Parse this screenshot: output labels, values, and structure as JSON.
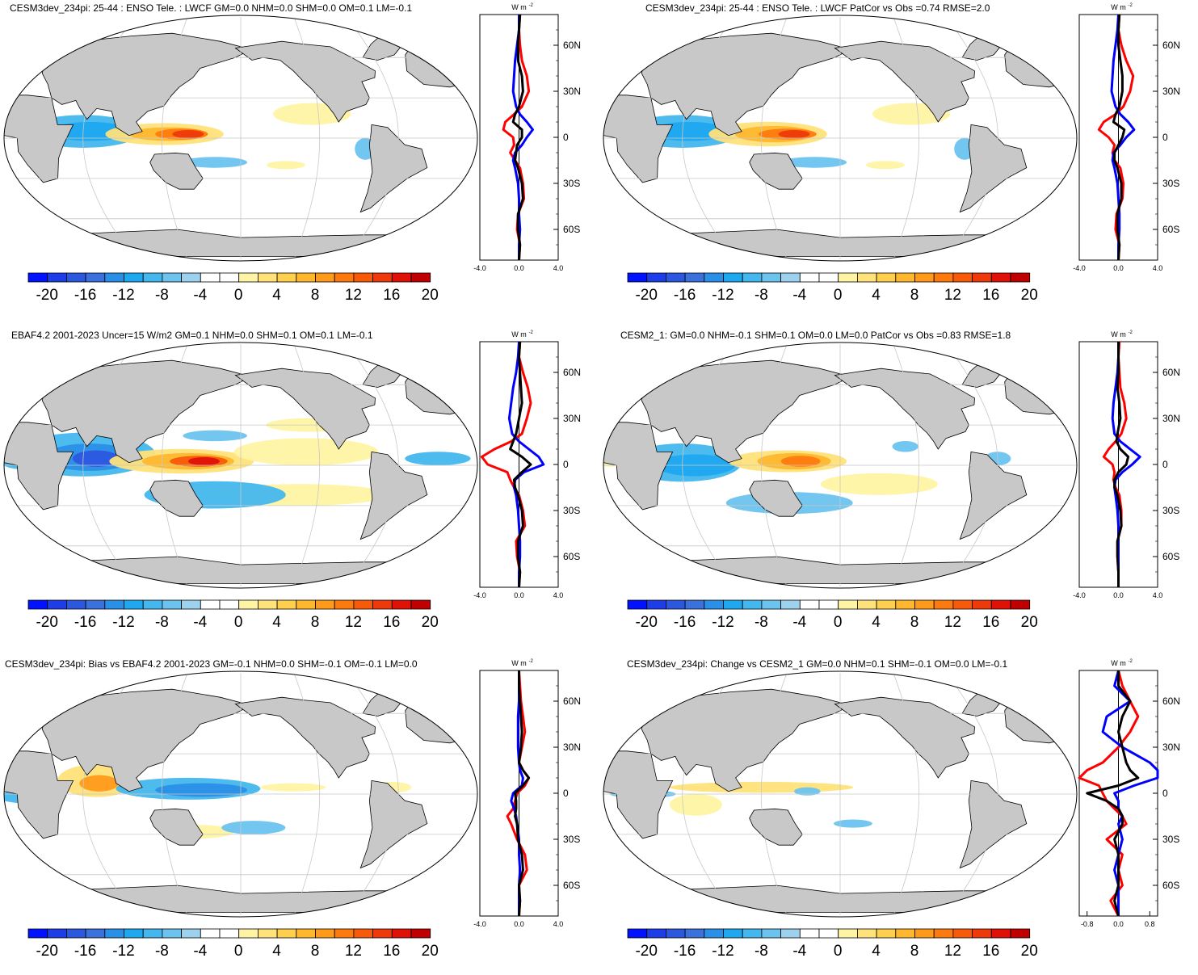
{
  "colors": {
    "land": "#c8c8c8",
    "ocean": "#ffffff",
    "grid": "#c8c8c8",
    "zonal_series": {
      "model": "#ff0000",
      "obs_or_ref": "#0000ff",
      "difference": "#000000"
    },
    "colorbar": [
      "#0012ff",
      "#1d3de8",
      "#2c58e0",
      "#3a71dc",
      "#2a8fe6",
      "#1ea8ef",
      "#44b7ee",
      "#6cc3ee",
      "#9dd2ef",
      "#ffffff",
      "#ffffff",
      "#fff4a3",
      "#ffe27a",
      "#ffcf4e",
      "#ffb72e",
      "#ff9a1a",
      "#ff7a0e",
      "#f85a0a",
      "#ee3a0a",
      "#e01208",
      "#c00000"
    ]
  },
  "charts": [
    {
      "title": "CESM3dev_234pi: 25-44 : ENSO Tele. : LWCF GM=0.0 NHM=0.0 SHM=0.0 OM=0.1 LM=-0.1",
      "unit": "W m-2",
      "zonal_xticks": [
        "-4.0",
        "0.0",
        "4.0"
      ],
      "zonal_xlim": [
        -4,
        4
      ],
      "colorbar_labels": [
        "-20",
        "-16",
        "-12",
        "-8",
        "-4",
        "0",
        "4",
        "8",
        "12",
        "16",
        "20"
      ]
    },
    {
      "title": "CESM3dev_234pi: 25-44 : ENSO Tele. : LWCF PatCor vs Obs =0.74 RMSE=2.0",
      "unit": "W m-2",
      "zonal_xticks": [
        "-4.0",
        "0.0",
        "4.0"
      ],
      "zonal_xlim": [
        -4,
        4
      ],
      "colorbar_labels": [
        "-20",
        "-16",
        "-12",
        "-8",
        "-4",
        "0",
        "4",
        "8",
        "12",
        "16",
        "20"
      ]
    },
    {
      "title": "EBAF4.2 2001-2023 Uncer=15 W/m2 GM=0.1 NHM=0.0 SHM=0.1 OM=0.1 LM=-0.1",
      "unit": "W m-2",
      "zonal_xticks": [
        "-4.0",
        "0.0",
        "4.0"
      ],
      "zonal_xlim": [
        -4,
        4
      ],
      "colorbar_labels": [
        "-20",
        "-16",
        "-12",
        "-8",
        "-4",
        "0",
        "4",
        "8",
        "12",
        "16",
        "20"
      ]
    },
    {
      "title": "CESM2_1: GM=0.0 NHM=-0.1 SHM=0.1 OM=0.0 LM=0.0 PatCor vs Obs =0.83 RMSE=1.8",
      "unit": "W m-2",
      "zonal_xticks": [
        "-4.0",
        "0.0",
        "4.0"
      ],
      "zonal_xlim": [
        -4,
        4
      ],
      "colorbar_labels": [
        "-20",
        "-16",
        "-12",
        "-8",
        "-4",
        "0",
        "4",
        "8",
        "12",
        "16",
        "20"
      ]
    },
    {
      "title": "CESM3dev_234pi: Bias vs EBAF4.2 2001-2023 GM=-0.1 NHM=0.0 SHM=-0.1 OM=-0.1 LM=0.0",
      "unit": "W m-2",
      "zonal_xticks": [
        "-4.0",
        "0.0",
        "4.0"
      ],
      "zonal_xlim": [
        -4,
        4
      ],
      "colorbar_labels": [
        "-20",
        "-16",
        "-12",
        "-8",
        "-4",
        "0",
        "4",
        "8",
        "12",
        "16",
        "20"
      ]
    },
    {
      "title": "CESM3dev_234pi: Change vs CESM2_1 GM=0.0 NHM=0.1 SHM=-0.1 OM=0.0 LM=-0.1",
      "unit": "W m-2",
      "zonal_xticks": [
        "-0.8",
        "0.0",
        "0.8"
      ],
      "zonal_xlim": [
        -1,
        1
      ],
      "colorbar_labels": [
        "-20",
        "-16",
        "-12",
        "-8",
        "-4",
        "0",
        "4",
        "8",
        "12",
        "16",
        "20"
      ]
    }
  ],
  "chart_data": [
    {
      "type": "heatmap",
      "title": "CESM3dev_234pi: 25-44 : ENSO Tele. : LWCF GM=0.0 NHM=0.0 SHM=0.0 OM=0.1 LM=-0.1",
      "colorbar_range": [
        -22,
        22
      ],
      "colorbar_interval": 2,
      "zonal_mean": {
        "ylim": [
          -80,
          80
        ],
        "yticks": [
          "60N",
          "30N",
          "0",
          "30S",
          "60S"
        ],
        "xlim": [
          -4,
          4
        ],
        "lat": [
          80,
          70,
          60,
          50,
          40,
          30,
          20,
          15,
          10,
          5,
          0,
          -5,
          -10,
          -15,
          -20,
          -30,
          -40,
          -50,
          -60,
          -70,
          -80
        ],
        "series": [
          {
            "color": "red",
            "values": [
              0.1,
              0.0,
              0.1,
              0.3,
              0.8,
              1.0,
              0.3,
              -0.5,
              -1.4,
              -1.6,
              -0.6,
              -0.5,
              -0.9,
              -0.4,
              0.1,
              0.4,
              0.5,
              -0.1,
              -0.2,
              0.1,
              0.0
            ]
          },
          {
            "color": "blue",
            "values": [
              0.0,
              0.0,
              -0.2,
              -0.4,
              -0.5,
              -0.6,
              -0.3,
              0.1,
              0.8,
              1.4,
              0.8,
              0.3,
              -0.4,
              -0.6,
              -0.4,
              -0.1,
              0.0,
              0.0,
              0.1,
              0.0,
              0.0
            ]
          },
          {
            "color": "black",
            "values": [
              0.1,
              0.0,
              -0.1,
              -0.1,
              0.3,
              0.4,
              0.0,
              -0.4,
              -0.6,
              0.3,
              0.3,
              -0.2,
              -0.3,
              -0.4,
              -0.1,
              0.3,
              0.4,
              -0.1,
              -0.1,
              0.1,
              0.0
            ]
          }
        ]
      }
    },
    {
      "type": "heatmap",
      "title": "CESM3dev_234pi: 25-44 : ENSO Tele. : LWCF PatCor vs Obs =0.74 RMSE=2.0",
      "colorbar_range": [
        -22,
        22
      ],
      "colorbar_interval": 2,
      "zonal_mean": {
        "ylim": [
          -80,
          80
        ],
        "yticks": [
          "60N",
          "30N",
          "0",
          "30S",
          "60S"
        ],
        "xlim": [
          -4,
          4
        ],
        "lat": [
          80,
          70,
          60,
          50,
          40,
          30,
          20,
          15,
          10,
          5,
          0,
          -5,
          -10,
          -15,
          -20,
          -30,
          -40,
          -50,
          -60,
          -70,
          -80
        ],
        "series": [
          {
            "color": "red",
            "values": [
              0.1,
              0.0,
              0.3,
              0.8,
              1.5,
              1.2,
              0.5,
              -0.3,
              -1.5,
              -2.0,
              -1.0,
              -0.4,
              -0.6,
              -0.4,
              0.2,
              0.5,
              0.4,
              -0.2,
              -0.3,
              0.1,
              0.0
            ]
          },
          {
            "color": "blue",
            "values": [
              0.0,
              -0.1,
              -0.3,
              -0.5,
              -0.6,
              -0.7,
              -0.3,
              0.2,
              1.0,
              1.6,
              0.8,
              0.2,
              -0.5,
              -0.6,
              -0.4,
              -0.1,
              0.0,
              0.1,
              0.1,
              0.0,
              0.0
            ]
          },
          {
            "color": "black",
            "values": [
              0.1,
              0.0,
              0.0,
              0.2,
              0.4,
              0.4,
              0.1,
              -0.3,
              -0.5,
              0.6,
              0.4,
              0.0,
              -0.4,
              -0.4,
              -0.1,
              0.3,
              0.3,
              -0.1,
              -0.1,
              0.1,
              0.0
            ]
          }
        ]
      }
    },
    {
      "type": "heatmap",
      "title": "EBAF4.2 2001-2023 Uncer=15 W/m2 GM=0.1 NHM=0.0 SHM=0.1 OM=0.1 LM=-0.1",
      "colorbar_range": [
        -22,
        22
      ],
      "colorbar_interval": 2,
      "zonal_mean": {
        "ylim": [
          -80,
          80
        ],
        "yticks": [
          "60N",
          "30N",
          "0",
          "30S",
          "60S"
        ],
        "xlim": [
          -4,
          4
        ],
        "lat": [
          80,
          70,
          60,
          50,
          40,
          30,
          20,
          15,
          10,
          5,
          0,
          -5,
          -10,
          -15,
          -20,
          -30,
          -40,
          -50,
          -60,
          -70,
          -80
        ],
        "series": [
          {
            "color": "red",
            "values": [
              0.1,
              0.0,
              0.4,
              0.9,
              1.2,
              0.8,
              0.3,
              -0.8,
              -2.5,
              -3.8,
              -3.2,
              -1.2,
              -0.9,
              -0.5,
              0.0,
              0.4,
              0.6,
              -0.3,
              -0.2,
              0.1,
              0.0
            ]
          },
          {
            "color": "blue",
            "values": [
              0.0,
              -0.1,
              -0.3,
              -0.6,
              -0.8,
              -1.0,
              -0.7,
              0.0,
              1.0,
              2.0,
              2.5,
              0.5,
              -0.4,
              -0.5,
              -0.3,
              -0.1,
              0.0,
              0.1,
              0.1,
              0.0,
              0.0
            ]
          },
          {
            "color": "black",
            "values": [
              0.1,
              0.0,
              0.1,
              0.2,
              0.3,
              0.0,
              -0.3,
              -0.6,
              -0.9,
              0.3,
              1.2,
              0.3,
              -0.5,
              -0.4,
              -0.1,
              0.3,
              0.4,
              -0.1,
              -0.1,
              0.1,
              0.0
            ]
          }
        ]
      }
    },
    {
      "type": "heatmap",
      "title": "CESM2_1: GM=0.0 NHM=-0.1 SHM=0.1 OM=0.0 LM=0.0 PatCor vs Obs =0.83 RMSE=1.8",
      "colorbar_range": [
        -22,
        22
      ],
      "colorbar_interval": 2,
      "zonal_mean": {
        "ylim": [
          -80,
          80
        ],
        "yticks": [
          "60N",
          "30N",
          "0",
          "30S",
          "60S"
        ],
        "xlim": [
          -4,
          4
        ],
        "lat": [
          80,
          70,
          60,
          50,
          40,
          30,
          20,
          15,
          10,
          5,
          0,
          -5,
          -10,
          -15,
          -20,
          -30,
          -40,
          -50,
          -60,
          -70,
          -80
        ],
        "series": [
          {
            "color": "red",
            "values": [
              0.1,
              0.0,
              0.1,
              0.2,
              0.6,
              0.8,
              0.3,
              -0.3,
              -1.0,
              -1.5,
              -0.6,
              -0.4,
              -0.5,
              -0.3,
              0.1,
              0.3,
              0.3,
              -0.1,
              -0.1,
              0.0,
              0.0
            ]
          },
          {
            "color": "blue",
            "values": [
              0.0,
              0.0,
              -0.1,
              -0.3,
              -0.5,
              -0.6,
              -0.4,
              0.2,
              1.2,
              2.2,
              1.4,
              0.4,
              -0.3,
              -0.4,
              -0.3,
              -0.1,
              0.0,
              0.0,
              0.0,
              0.0,
              0.0
            ]
          },
          {
            "color": "black",
            "values": [
              0.0,
              0.0,
              0.0,
              -0.1,
              0.1,
              0.2,
              -0.1,
              -0.2,
              0.2,
              1.0,
              0.8,
              0.0,
              -0.4,
              -0.4,
              -0.1,
              0.2,
              0.3,
              -0.1,
              -0.1,
              0.0,
              0.0
            ]
          }
        ]
      }
    },
    {
      "type": "heatmap",
      "title": "CESM3dev_234pi: Bias vs EBAF4.2 2001-2023 GM=-0.1 NHM=0.0 SHM=-0.1 OM=-0.1 LM=0.0",
      "colorbar_range": [
        -22,
        22
      ],
      "colorbar_interval": 2,
      "zonal_mean": {
        "ylim": [
          -80,
          80
        ],
        "yticks": [
          "60N",
          "30N",
          "0",
          "30S",
          "60S"
        ],
        "xlim": [
          -4,
          4
        ],
        "lat": [
          80,
          70,
          60,
          50,
          40,
          30,
          20,
          15,
          10,
          5,
          0,
          -5,
          -10,
          -15,
          -20,
          -30,
          -40,
          -50,
          -60,
          -70,
          -80
        ],
        "series": [
          {
            "color": "red",
            "values": [
              0.0,
              0.1,
              0.2,
              0.4,
              0.6,
              0.3,
              0.0,
              0.4,
              1.0,
              0.6,
              -0.2,
              -0.4,
              -0.6,
              -1.2,
              -0.8,
              -0.2,
              0.6,
              0.8,
              0.0,
              0.1,
              0.0
            ]
          },
          {
            "color": "blue",
            "values": [
              0.0,
              0.0,
              0.0,
              -0.1,
              -0.1,
              -0.1,
              0.0,
              0.1,
              0.4,
              0.3,
              -0.6,
              -0.8,
              -0.5,
              -0.3,
              -0.2,
              0.0,
              0.0,
              0.1,
              0.0,
              0.0,
              0.0
            ]
          },
          {
            "color": "black",
            "values": [
              0.0,
              0.0,
              0.1,
              0.2,
              0.3,
              0.2,
              0.0,
              0.4,
              1.0,
              0.4,
              -0.4,
              -0.3,
              -0.3,
              -0.4,
              -0.2,
              -0.1,
              0.3,
              0.4,
              0.0,
              0.1,
              0.0
            ]
          }
        ]
      }
    },
    {
      "type": "heatmap",
      "title": "CESM3dev_234pi: Change vs CESM2_1 GM=0.0 NHM=0.1 SHM=-0.1 OM=0.0 LM=-0.1",
      "colorbar_range": [
        -22,
        22
      ],
      "colorbar_interval": 2,
      "zonal_mean": {
        "ylim": [
          -80,
          80
        ],
        "yticks": [
          "60N",
          "30N",
          "0",
          "30S",
          "60S"
        ],
        "xlim": [
          -1,
          1
        ],
        "lat": [
          80,
          70,
          60,
          50,
          40,
          30,
          20,
          15,
          10,
          5,
          0,
          -5,
          -10,
          -15,
          -20,
          -30,
          -40,
          -50,
          -60,
          -70,
          -80
        ],
        "series": [
          {
            "color": "red",
            "values": [
              0.0,
              0.1,
              0.3,
              0.5,
              0.3,
              0.0,
              -0.4,
              -0.8,
              -1.0,
              -0.5,
              -0.4,
              -0.3,
              -0.1,
              0.1,
              0.2,
              -0.3,
              0.1,
              0.0,
              0.1,
              -0.2,
              0.0
            ]
          },
          {
            "color": "blue",
            "values": [
              0.0,
              -0.1,
              0.3,
              -0.3,
              -0.4,
              0.1,
              0.8,
              1.0,
              1.0,
              0.4,
              -0.1,
              0.0,
              0.0,
              0.1,
              0.0,
              0.1,
              0.0,
              -0.1,
              0.0,
              0.0,
              0.0
            ]
          },
          {
            "color": "black",
            "values": [
              0.0,
              0.0,
              0.3,
              0.1,
              0.0,
              0.1,
              0.2,
              0.3,
              0.5,
              0.0,
              -0.8,
              -0.3,
              0.0,
              0.1,
              0.1,
              -0.1,
              0.0,
              0.0,
              0.0,
              -0.1,
              0.0
            ]
          }
        ]
      }
    }
  ]
}
